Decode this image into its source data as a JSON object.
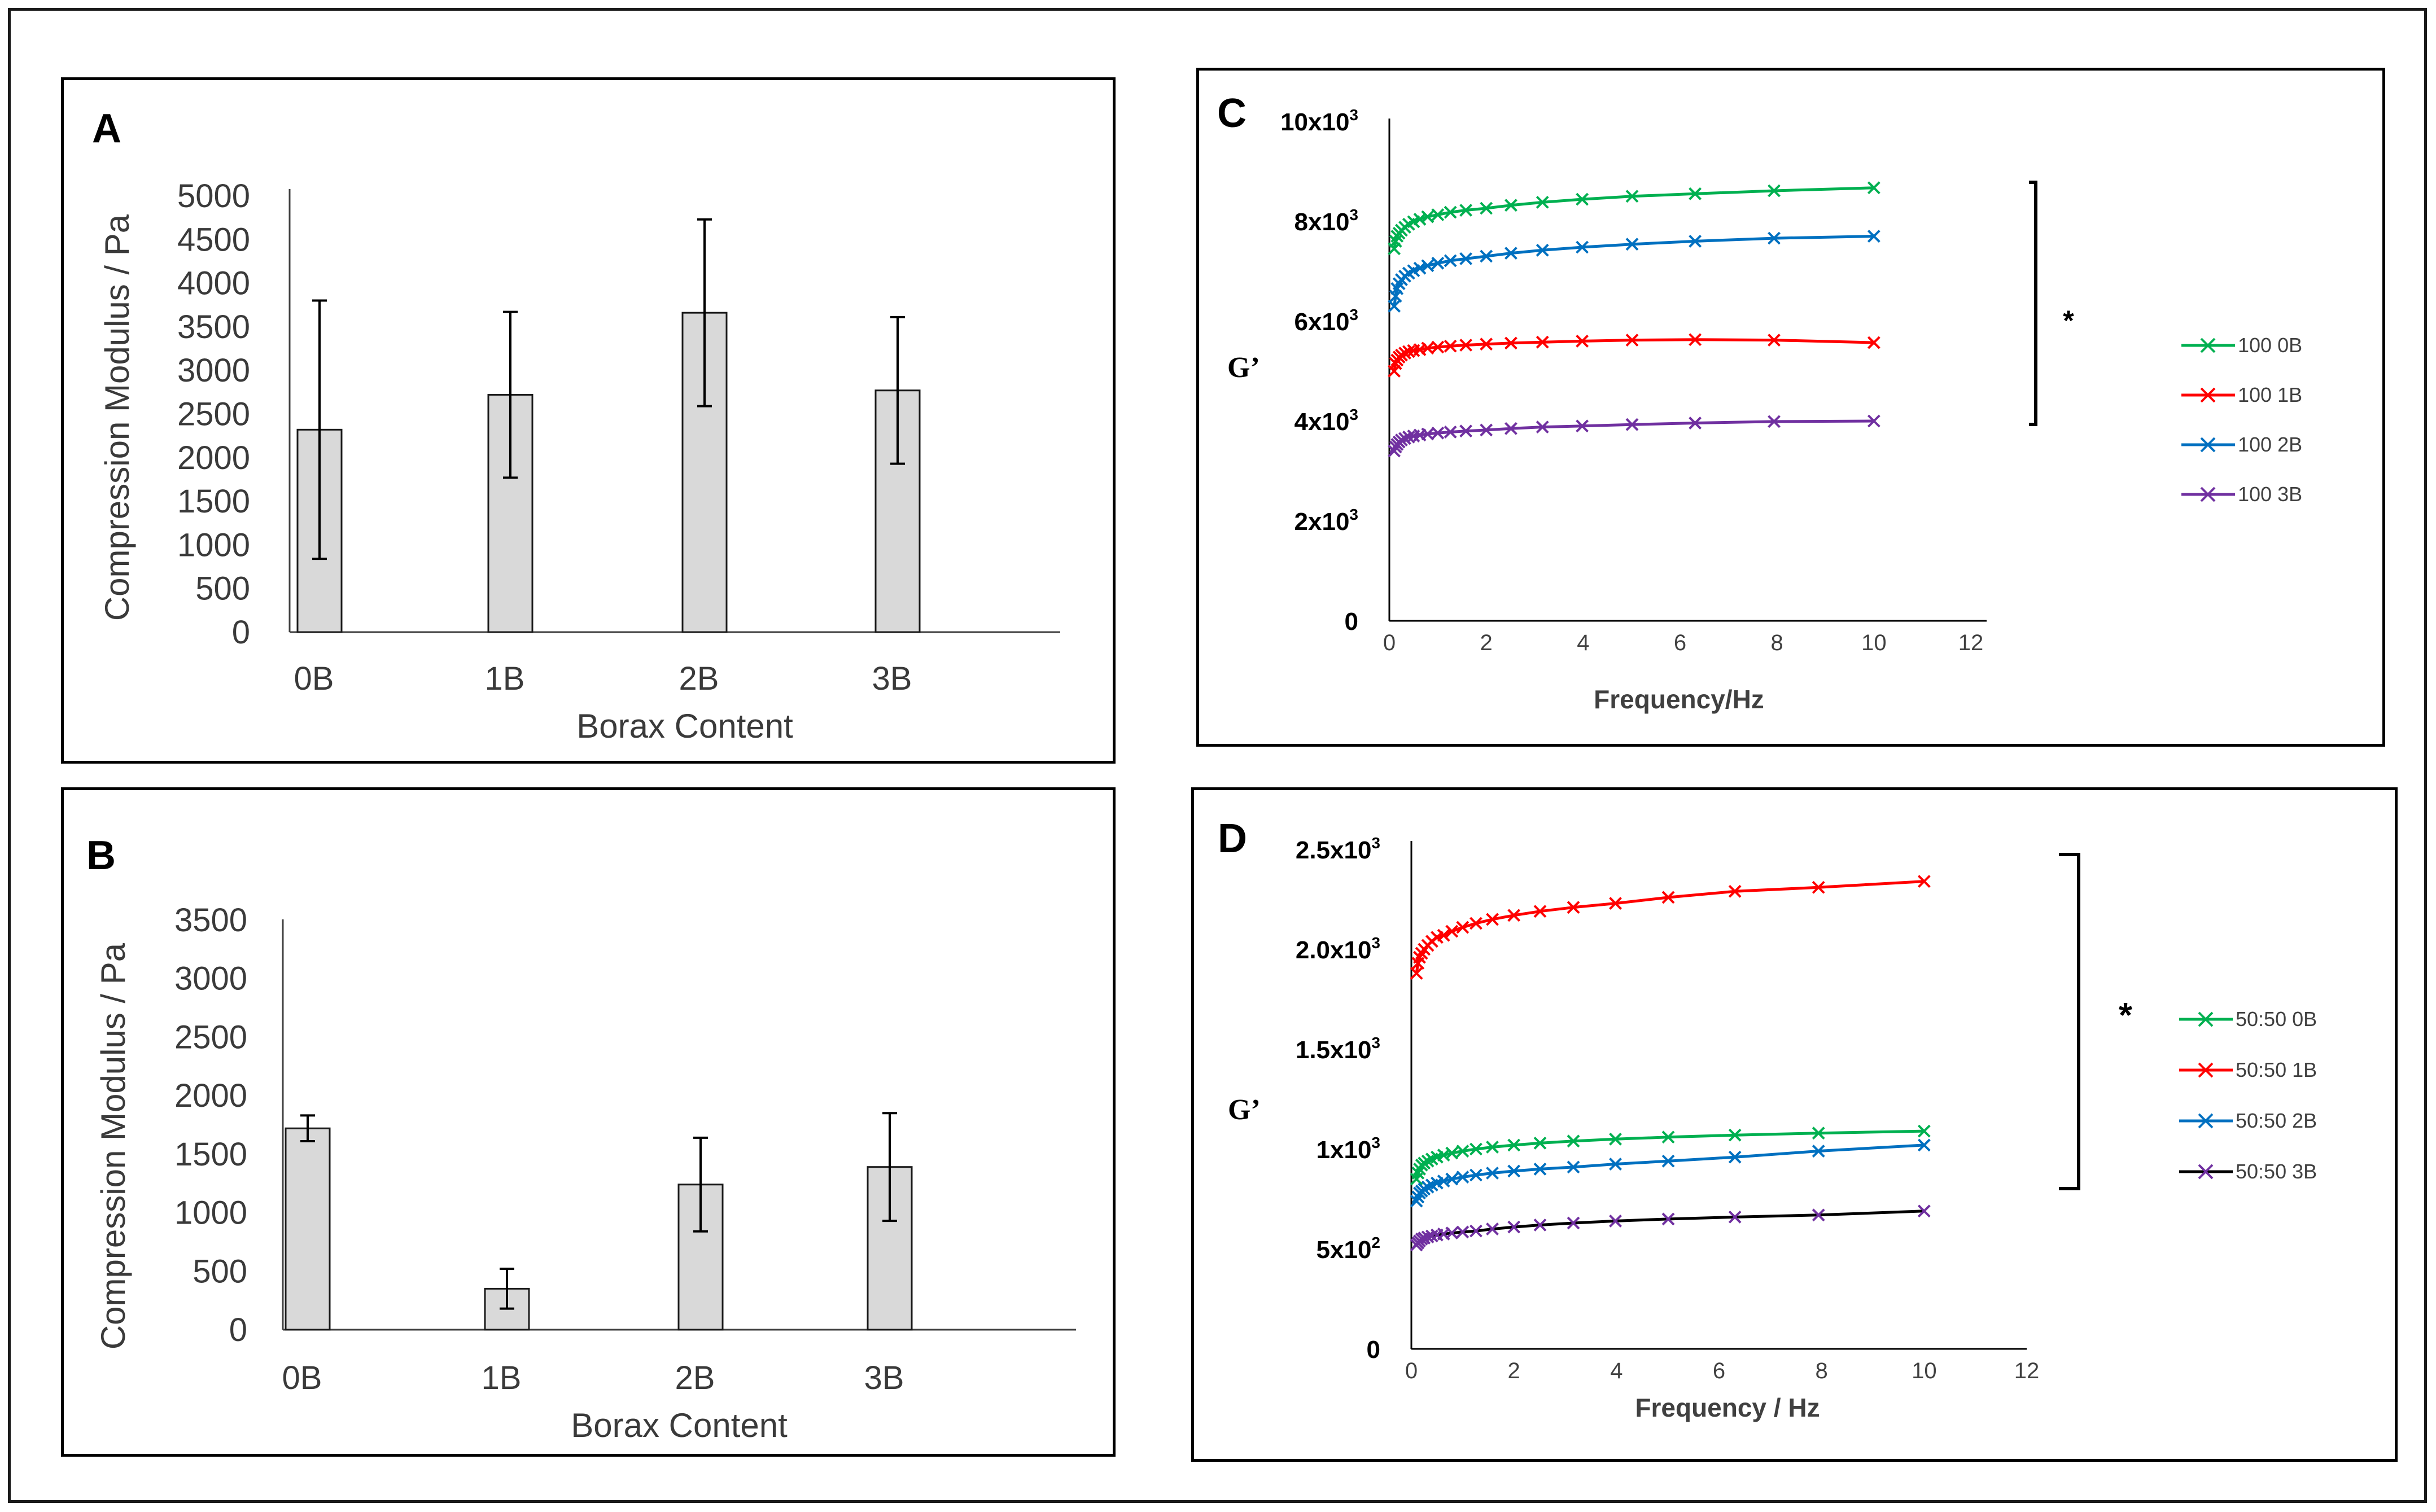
{
  "chart_data": [
    {
      "panel": "A",
      "type": "bar",
      "categories": [
        "0B",
        "1B",
        "2B",
        "3B"
      ],
      "values": [
        2320,
        2720,
        3660,
        2770
      ],
      "errors": [
        1480,
        950,
        1070,
        840
      ],
      "xlabel": "Borax Content",
      "ylabel": "Compression Modulus / Pa",
      "ylim": [
        0,
        5000
      ],
      "yticks": [
        "0",
        "500",
        "1000",
        "1500",
        "2000",
        "2500",
        "3000",
        "3500",
        "4000",
        "4500",
        "5000"
      ],
      "bar_color": "#d9d9d9"
    },
    {
      "panel": "B",
      "type": "bar",
      "categories": [
        "0B",
        "1B",
        "2B",
        "3B"
      ],
      "values": [
        1720,
        350,
        1240,
        1390
      ],
      "errors": [
        110,
        170,
        400,
        460
      ],
      "xlabel": "Borax Content",
      "ylabel": "Compression Modulus / Pa",
      "ylim": [
        0,
        3500
      ],
      "yticks": [
        "0",
        "500",
        "1000",
        "1500",
        "2000",
        "2500",
        "3000",
        "3500"
      ],
      "bar_color": "#d9d9d9"
    },
    {
      "panel": "C",
      "type": "line",
      "xlabel": "Frequency/Hz",
      "ylabel": "G’",
      "xlim": [
        0,
        12
      ],
      "ylim": [
        0,
        10000
      ],
      "xticks": [
        "0",
        "2",
        "4",
        "6",
        "8",
        "10",
        "12"
      ],
      "yticks": [
        {
          "base": "0",
          "exp": ""
        },
        {
          "base": "2x10",
          "exp": "3"
        },
        {
          "base": "4x10",
          "exp": "3"
        },
        {
          "base": "6x10",
          "exp": "3"
        },
        {
          "base": "8x10",
          "exp": "3"
        },
        {
          "base": "10x10",
          "exp": "3"
        }
      ],
      "x": [
        0.1,
        0.13,
        0.16,
        0.2,
        0.25,
        0.32,
        0.4,
        0.5,
        0.63,
        0.79,
        1.0,
        1.26,
        1.58,
        2.0,
        2.51,
        3.16,
        3.98,
        5.01,
        6.31,
        7.94,
        10.0
      ],
      "series": [
        {
          "name": "100 0B",
          "color": "#00b050",
          "values": [
            7450,
            7600,
            7700,
            7760,
            7820,
            7880,
            7940,
            7990,
            8040,
            8090,
            8130,
            8180,
            8220,
            8260,
            8320,
            8380,
            8440,
            8500,
            8550,
            8610,
            8670
          ]
        },
        {
          "name": "100 1B",
          "color": "#ff0000",
          "values": [
            5000,
            5150,
            5220,
            5280,
            5320,
            5360,
            5390,
            5410,
            5430,
            5460,
            5480,
            5500,
            5520,
            5540,
            5560,
            5580,
            5600,
            5620,
            5630,
            5620,
            5570
          ]
        },
        {
          "name": "100 2B",
          "color": "#0070c0",
          "values": [
            6300,
            6500,
            6650,
            6750,
            6830,
            6900,
            6960,
            7010,
            7060,
            7110,
            7160,
            7210,
            7250,
            7300,
            7360,
            7420,
            7480,
            7540,
            7600,
            7660,
            7700
          ]
        },
        {
          "name": "100 3B",
          "color": "#7030a0",
          "values": [
            3400,
            3480,
            3530,
            3580,
            3620,
            3650,
            3680,
            3700,
            3720,
            3740,
            3760,
            3780,
            3800,
            3820,
            3850,
            3880,
            3900,
            3930,
            3960,
            3990,
            4000
          ]
        }
      ],
      "annotation": "*"
    },
    {
      "panel": "D",
      "type": "line",
      "xlabel": "Frequency / Hz",
      "ylabel": "G’",
      "xlim": [
        0,
        12
      ],
      "ylim": [
        0,
        2500
      ],
      "xticks": [
        "0",
        "2",
        "4",
        "6",
        "8",
        "10",
        "12"
      ],
      "yticks": [
        {
          "base": "0",
          "exp": ""
        },
        {
          "base": "5x10",
          "exp": "2"
        },
        {
          "base": "1x10",
          "exp": "3"
        },
        {
          "base": "1.5x10",
          "exp": "3"
        },
        {
          "base": "2.0x10",
          "exp": "3"
        },
        {
          "base": "2.5x10",
          "exp": "3"
        }
      ],
      "x": [
        0.1,
        0.13,
        0.16,
        0.2,
        0.25,
        0.32,
        0.4,
        0.5,
        0.63,
        0.79,
        1.0,
        1.26,
        1.58,
        2.0,
        2.51,
        3.16,
        3.98,
        5.01,
        6.31,
        7.94,
        10.0
      ],
      "series": [
        {
          "name": "50:50 0B",
          "color": "#00b050",
          "values": [
            850,
            880,
            900,
            920,
            930,
            940,
            950,
            960,
            970,
            980,
            990,
            1000,
            1010,
            1020,
            1030,
            1040,
            1050,
            1060,
            1070,
            1080,
            1090
          ]
        },
        {
          "name": "50:50 1B",
          "color": "#ff0000",
          "values": [
            1880,
            1930,
            1960,
            1980,
            2000,
            2020,
            2040,
            2060,
            2070,
            2090,
            2110,
            2130,
            2150,
            2170,
            2190,
            2210,
            2230,
            2260,
            2290,
            2310,
            2340
          ]
        },
        {
          "name": "50:50 2B",
          "color": "#0070c0",
          "values": [
            740,
            760,
            780,
            790,
            800,
            810,
            820,
            830,
            840,
            850,
            860,
            870,
            880,
            890,
            900,
            910,
            925,
            940,
            960,
            990,
            1020
          ]
        },
        {
          "name": "50:50 3B",
          "color": "#7030a0",
          "line_color": "#000000",
          "values": [
            520,
            530,
            540,
            550,
            555,
            560,
            565,
            570,
            575,
            580,
            585,
            590,
            600,
            610,
            620,
            630,
            640,
            650,
            660,
            670,
            690
          ]
        }
      ],
      "annotation": "*"
    }
  ]
}
